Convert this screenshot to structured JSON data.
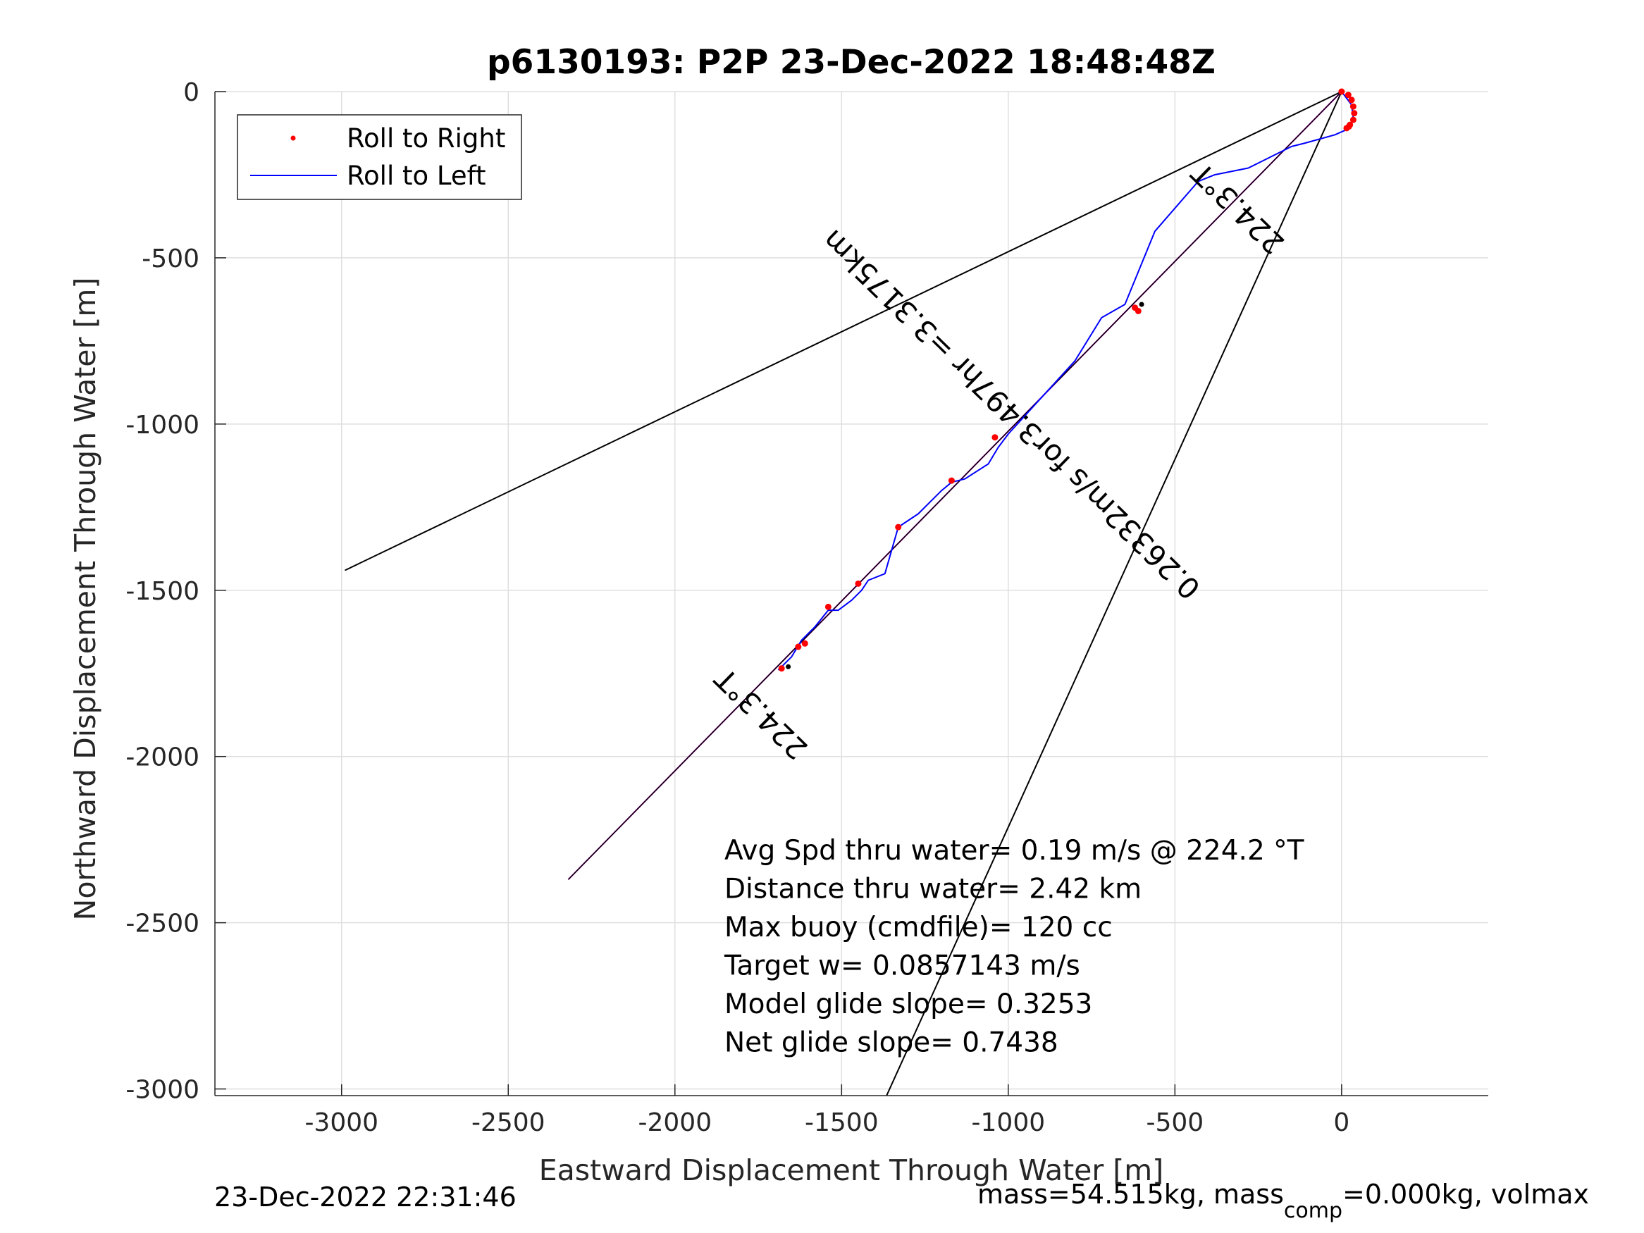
{
  "chart_data": {
    "type": "line",
    "title": "p6130193: P2P 23-Dec-2022 18:48:48Z",
    "xlabel": "Eastward Displacement Through Water [m]",
    "ylabel": "Northward Displacement Through Water [m]",
    "xlim": [
      -3380,
      440
    ],
    "ylim": [
      -3020,
      0
    ],
    "xticks": [
      -3000,
      -2500,
      -2000,
      -1500,
      -1000,
      -500,
      0
    ],
    "yticks": [
      0,
      -500,
      -1000,
      -1500,
      -2000,
      -2500,
      -3000
    ],
    "xtick_labels": [
      "-3000",
      "-2500",
      "-2000",
      "-1500",
      "-1000",
      "-500",
      "0"
    ],
    "ytick_labels": [
      "0",
      "-500",
      "-1000",
      "-1500",
      "-2000",
      "-2500",
      "-3000"
    ],
    "grid": true,
    "legend_position": "top-left",
    "series": [
      {
        "name": "Roll to Right",
        "style": "dots",
        "color": "#ff0000",
        "x": [
          0,
          20,
          30,
          35,
          38,
          35,
          25,
          15,
          22,
          -620,
          -610,
          -1040,
          -1170,
          -1330,
          -1450,
          -1540,
          -1610,
          -1630,
          -1680
        ],
        "y": [
          0,
          -10,
          -25,
          -45,
          -65,
          -85,
          -100,
          -110,
          -105,
          -650,
          -660,
          -1040,
          -1170,
          -1310,
          -1480,
          -1550,
          -1660,
          -1670,
          -1735
        ]
      },
      {
        "name": "Roll to Left",
        "style": "line",
        "color": "#0000ff",
        "x": [
          0,
          30,
          35,
          25,
          -20,
          -110,
          -150,
          -240,
          -280,
          -380,
          -430,
          -560,
          -650,
          -720,
          -800,
          -900,
          -1000,
          -1030,
          -1060,
          -1130,
          -1170,
          -1200,
          -1240,
          -1270,
          -1330,
          -1370,
          -1420,
          -1440,
          -1470,
          -1510,
          -1540,
          -1580,
          -1620,
          -1650,
          -1670,
          -1690
        ],
        "y": [
          0,
          -40,
          -80,
          -110,
          -130,
          -155,
          -165,
          -210,
          -230,
          -250,
          -270,
          -420,
          -640,
          -680,
          -810,
          -920,
          -1030,
          -1070,
          -1120,
          -1165,
          -1175,
          -1200,
          -1240,
          -1270,
          -1310,
          -1450,
          -1470,
          -1500,
          -1530,
          -1560,
          -1560,
          -1610,
          -1650,
          -1700,
          -1720,
          -1740
        ]
      },
      {
        "name": "",
        "style": "line",
        "color": "#ff00ff",
        "x": [
          0,
          -2320
        ],
        "y": [
          0,
          -2370
        ]
      },
      {
        "name": "",
        "style": "line",
        "color": "#000000",
        "x": [
          0,
          -2320
        ],
        "y": [
          0,
          -2370
        ]
      },
      {
        "name": "",
        "style": "line",
        "color": "#000000",
        "x": [
          0,
          -2990
        ],
        "y": [
          0,
          -1440
        ]
      },
      {
        "name": "",
        "style": "line",
        "color": "#000000",
        "x": [
          0,
          -1365
        ],
        "y": [
          0,
          -3020
        ]
      }
    ],
    "markers": [
      {
        "x": -1660,
        "y": -1730,
        "color": "#000000"
      },
      {
        "x": -600,
        "y": -640,
        "color": "#000000"
      }
    ],
    "annotations": [
      {
        "text": "224.3°T",
        "x": -1720,
        "y": -1850,
        "rotation": 224.3
      },
      {
        "text": "224.3°T",
        "x": -290,
        "y": -330,
        "rotation": 224.3
      },
      {
        "text": "0.26332m/s for3.497hr =3.3175km",
        "x": -970,
        "y": -950,
        "rotation": 224.3
      }
    ],
    "notes": [
      "Avg Spd thru water=  0.19 m/s @ 224.2 °T",
      "Distance thru water=  2.42 km",
      "Max buoy (cmdfile)= 120 cc",
      "Target w= 0.0857143 m/s",
      "Model glide slope= 0.3253",
      "Net glide slope= 0.7438"
    ]
  },
  "footer": {
    "left": "23-Dec-2022 22:31:46",
    "right_pre": "mass=54.515kg, mass",
    "right_sub": "comp",
    "right_post": "=0.000kg, volmax"
  }
}
